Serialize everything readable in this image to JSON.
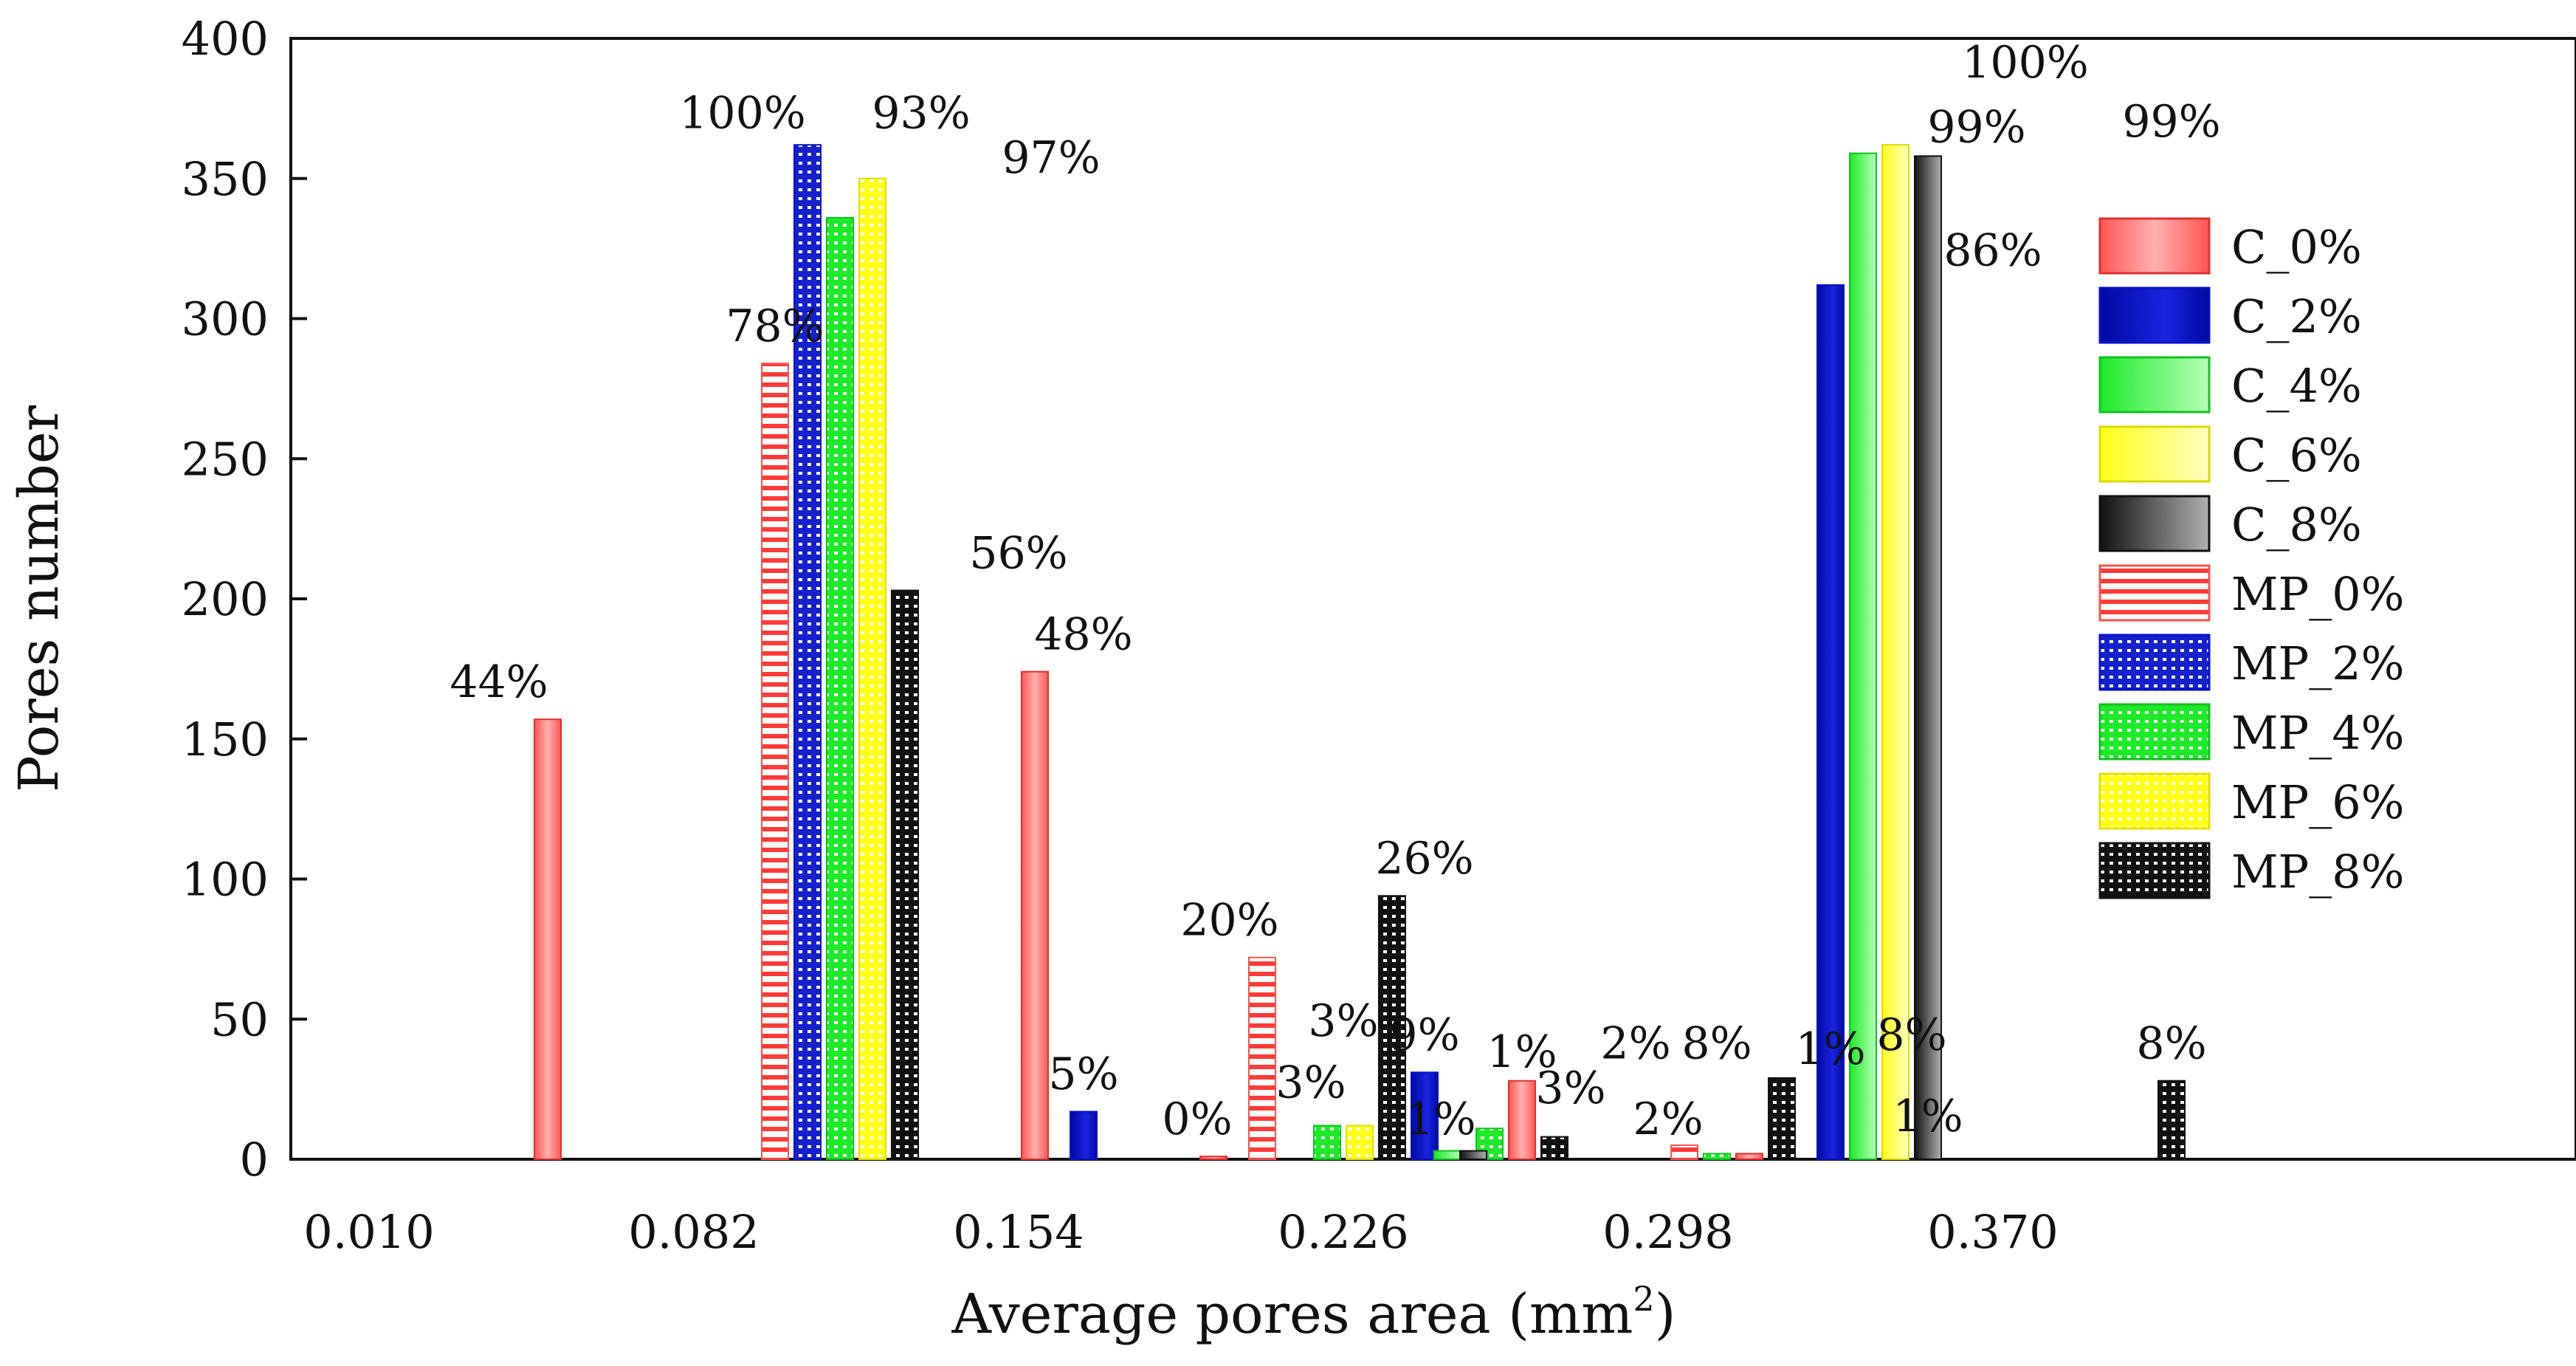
{
  "chart_data": {
    "type": "bar",
    "title": "",
    "xlabel": "Average pores area (mm",
    "xlabel_sup": "2",
    "xlabel_close": ")",
    "ylabel": "Pores number",
    "ylim": [
      0,
      400
    ],
    "yticks": [
      "0",
      "50",
      "100",
      "150",
      "200",
      "250",
      "300",
      "350",
      "400"
    ],
    "xlim": [
      0,
      6.6
    ],
    "xticks": [
      {
        "x": 0,
        "label": "0.010"
      },
      {
        "x": 1,
        "label": "0.082"
      },
      {
        "x": 2,
        "label": "0.154"
      },
      {
        "x": 3,
        "label": "0.226"
      },
      {
        "x": 4,
        "label": "0.298"
      },
      {
        "x": 5,
        "label": "0.370"
      }
    ],
    "legend_position": "right",
    "series": [
      {
        "name": "C_0%",
        "color": "#ff2a2a",
        "pattern": "solid",
        "offset": -0.95
      },
      {
        "name": "C_2%",
        "color": "#0a12c8",
        "pattern": "solid",
        "offset": -0.65
      },
      {
        "name": "C_4%",
        "color": "#1eea2a",
        "pattern": "solid",
        "offset": -0.55
      },
      {
        "name": "C_6%",
        "color": "#ffff1a",
        "pattern": "solid",
        "offset": -0.45
      },
      {
        "name": "C_8%",
        "color": "#111111",
        "pattern": "solid",
        "offset": -0.35
      },
      {
        "name": "MP_0%",
        "color": "#ff2a2a",
        "pattern": "hstripe",
        "offset": -0.75
      },
      {
        "name": "MP_2%",
        "color": "#0a12c8",
        "pattern": "dots",
        "offset": -0.65
      },
      {
        "name": "MP_4%",
        "color": "#1eea2a",
        "pattern": "dots",
        "offset": -0.55
      },
      {
        "name": "MP_6%",
        "color": "#ffff1a",
        "pattern": "dots",
        "offset": -0.45
      },
      {
        "name": "MP_8%",
        "color": "#111111",
        "pattern": "dots",
        "offset": -0.35
      }
    ],
    "bars": [
      {
        "series": "C_0%",
        "x": 0.55,
        "value": 157
      },
      {
        "series": "C_0%",
        "x": 2.05,
        "value": 174
      },
      {
        "series": "C_0%",
        "x": 3.55,
        "value": 28
      },
      {
        "series": "C_0%",
        "x": 4.25,
        "value": 2
      },
      {
        "series": "MP_0%",
        "x": 1.25,
        "value": 284
      },
      {
        "series": "MP_0%",
        "x": 2.75,
        "value": 72
      },
      {
        "series": "MP_0%",
        "x": 4.05,
        "value": 5
      },
      {
        "series": "MP_2%",
        "x": 1.35,
        "value": 362
      },
      {
        "series": "C_2%",
        "x": 2.2,
        "value": 17
      },
      {
        "series": "C_2%",
        "x": 3.25,
        "value": 31
      },
      {
        "series": "C_2%",
        "x": 4.5,
        "value": 312
      },
      {
        "series": "MP_4%",
        "x": 1.45,
        "value": 336
      },
      {
        "series": "MP_4%",
        "x": 2.95,
        "value": 12
      },
      {
        "series": "MP_4%",
        "x": 3.45,
        "value": 11
      },
      {
        "series": "MP_4%",
        "x": 4.15,
        "value": 2
      },
      {
        "series": "C_4%",
        "x": 3.32,
        "value": 3
      },
      {
        "series": "C_4%",
        "x": 4.6,
        "value": 359
      },
      {
        "series": "MP_6%",
        "x": 1.55,
        "value": 350
      },
      {
        "series": "MP_6%",
        "x": 3.05,
        "value": 12
      },
      {
        "series": "C_6%",
        "x": 4.7,
        "value": 362
      },
      {
        "series": "MP_8%",
        "x": 1.65,
        "value": 203
      },
      {
        "series": "MP_8%",
        "x": 3.15,
        "value": 94
      },
      {
        "series": "MP_8%",
        "x": 3.65,
        "value": 8
      },
      {
        "series": "MP_8%",
        "x": 4.35,
        "value": 29
      },
      {
        "series": "MP_8%",
        "x": 5.55,
        "value": 28
      },
      {
        "series": "C_8%",
        "x": 3.4,
        "value": 3
      },
      {
        "series": "C_8%",
        "x": 4.8,
        "value": 358
      },
      {
        "series": "C_0%",
        "x": 2.6,
        "value": 1
      }
    ],
    "annotations": [
      {
        "text": "44%",
        "x": 0.4,
        "y": 165
      },
      {
        "text": "100%",
        "x": 1.15,
        "y": 368
      },
      {
        "text": "93%",
        "x": 1.7,
        "y": 368
      },
      {
        "text": "97%",
        "x": 2.1,
        "y": 352
      },
      {
        "text": "78%",
        "x": 1.25,
        "y": 292
      },
      {
        "text": "56%",
        "x": 2.0,
        "y": 211
      },
      {
        "text": "48%",
        "x": 2.2,
        "y": 182
      },
      {
        "text": "26%",
        "x": 3.25,
        "y": 102
      },
      {
        "text": "20%",
        "x": 2.65,
        "y": 80
      },
      {
        "text": "3%",
        "x": 3.0,
        "y": 44
      },
      {
        "text": "5%",
        "x": 2.2,
        "y": 25
      },
      {
        "text": "0%",
        "x": 2.55,
        "y": 9
      },
      {
        "text": "3%",
        "x": 2.9,
        "y": 22
      },
      {
        "text": "9%",
        "x": 3.25,
        "y": 39
      },
      {
        "text": "1%",
        "x": 3.55,
        "y": 33
      },
      {
        "text": "1%",
        "x": 3.3,
        "y": 9
      },
      {
        "text": "3%",
        "x": 3.7,
        "y": 20
      },
      {
        "text": "2%",
        "x": 3.9,
        "y": 36
      },
      {
        "text": "8%",
        "x": 4.15,
        "y": 36
      },
      {
        "text": "2%",
        "x": 4.0,
        "y": 9
      },
      {
        "text": "1%",
        "x": 4.5,
        "y": 34
      },
      {
        "text": "8%",
        "x": 4.75,
        "y": 39
      },
      {
        "text": "1%",
        "x": 4.8,
        "y": 10
      },
      {
        "text": "86%",
        "x": 5.0,
        "y": 319
      },
      {
        "text": "99%",
        "x": 4.95,
        "y": 363
      },
      {
        "text": "100%",
        "x": 5.1,
        "y": 386
      },
      {
        "text": "99%",
        "x": 5.55,
        "y": 365
      },
      {
        "text": "8%",
        "x": 5.55,
        "y": 36
      }
    ]
  }
}
